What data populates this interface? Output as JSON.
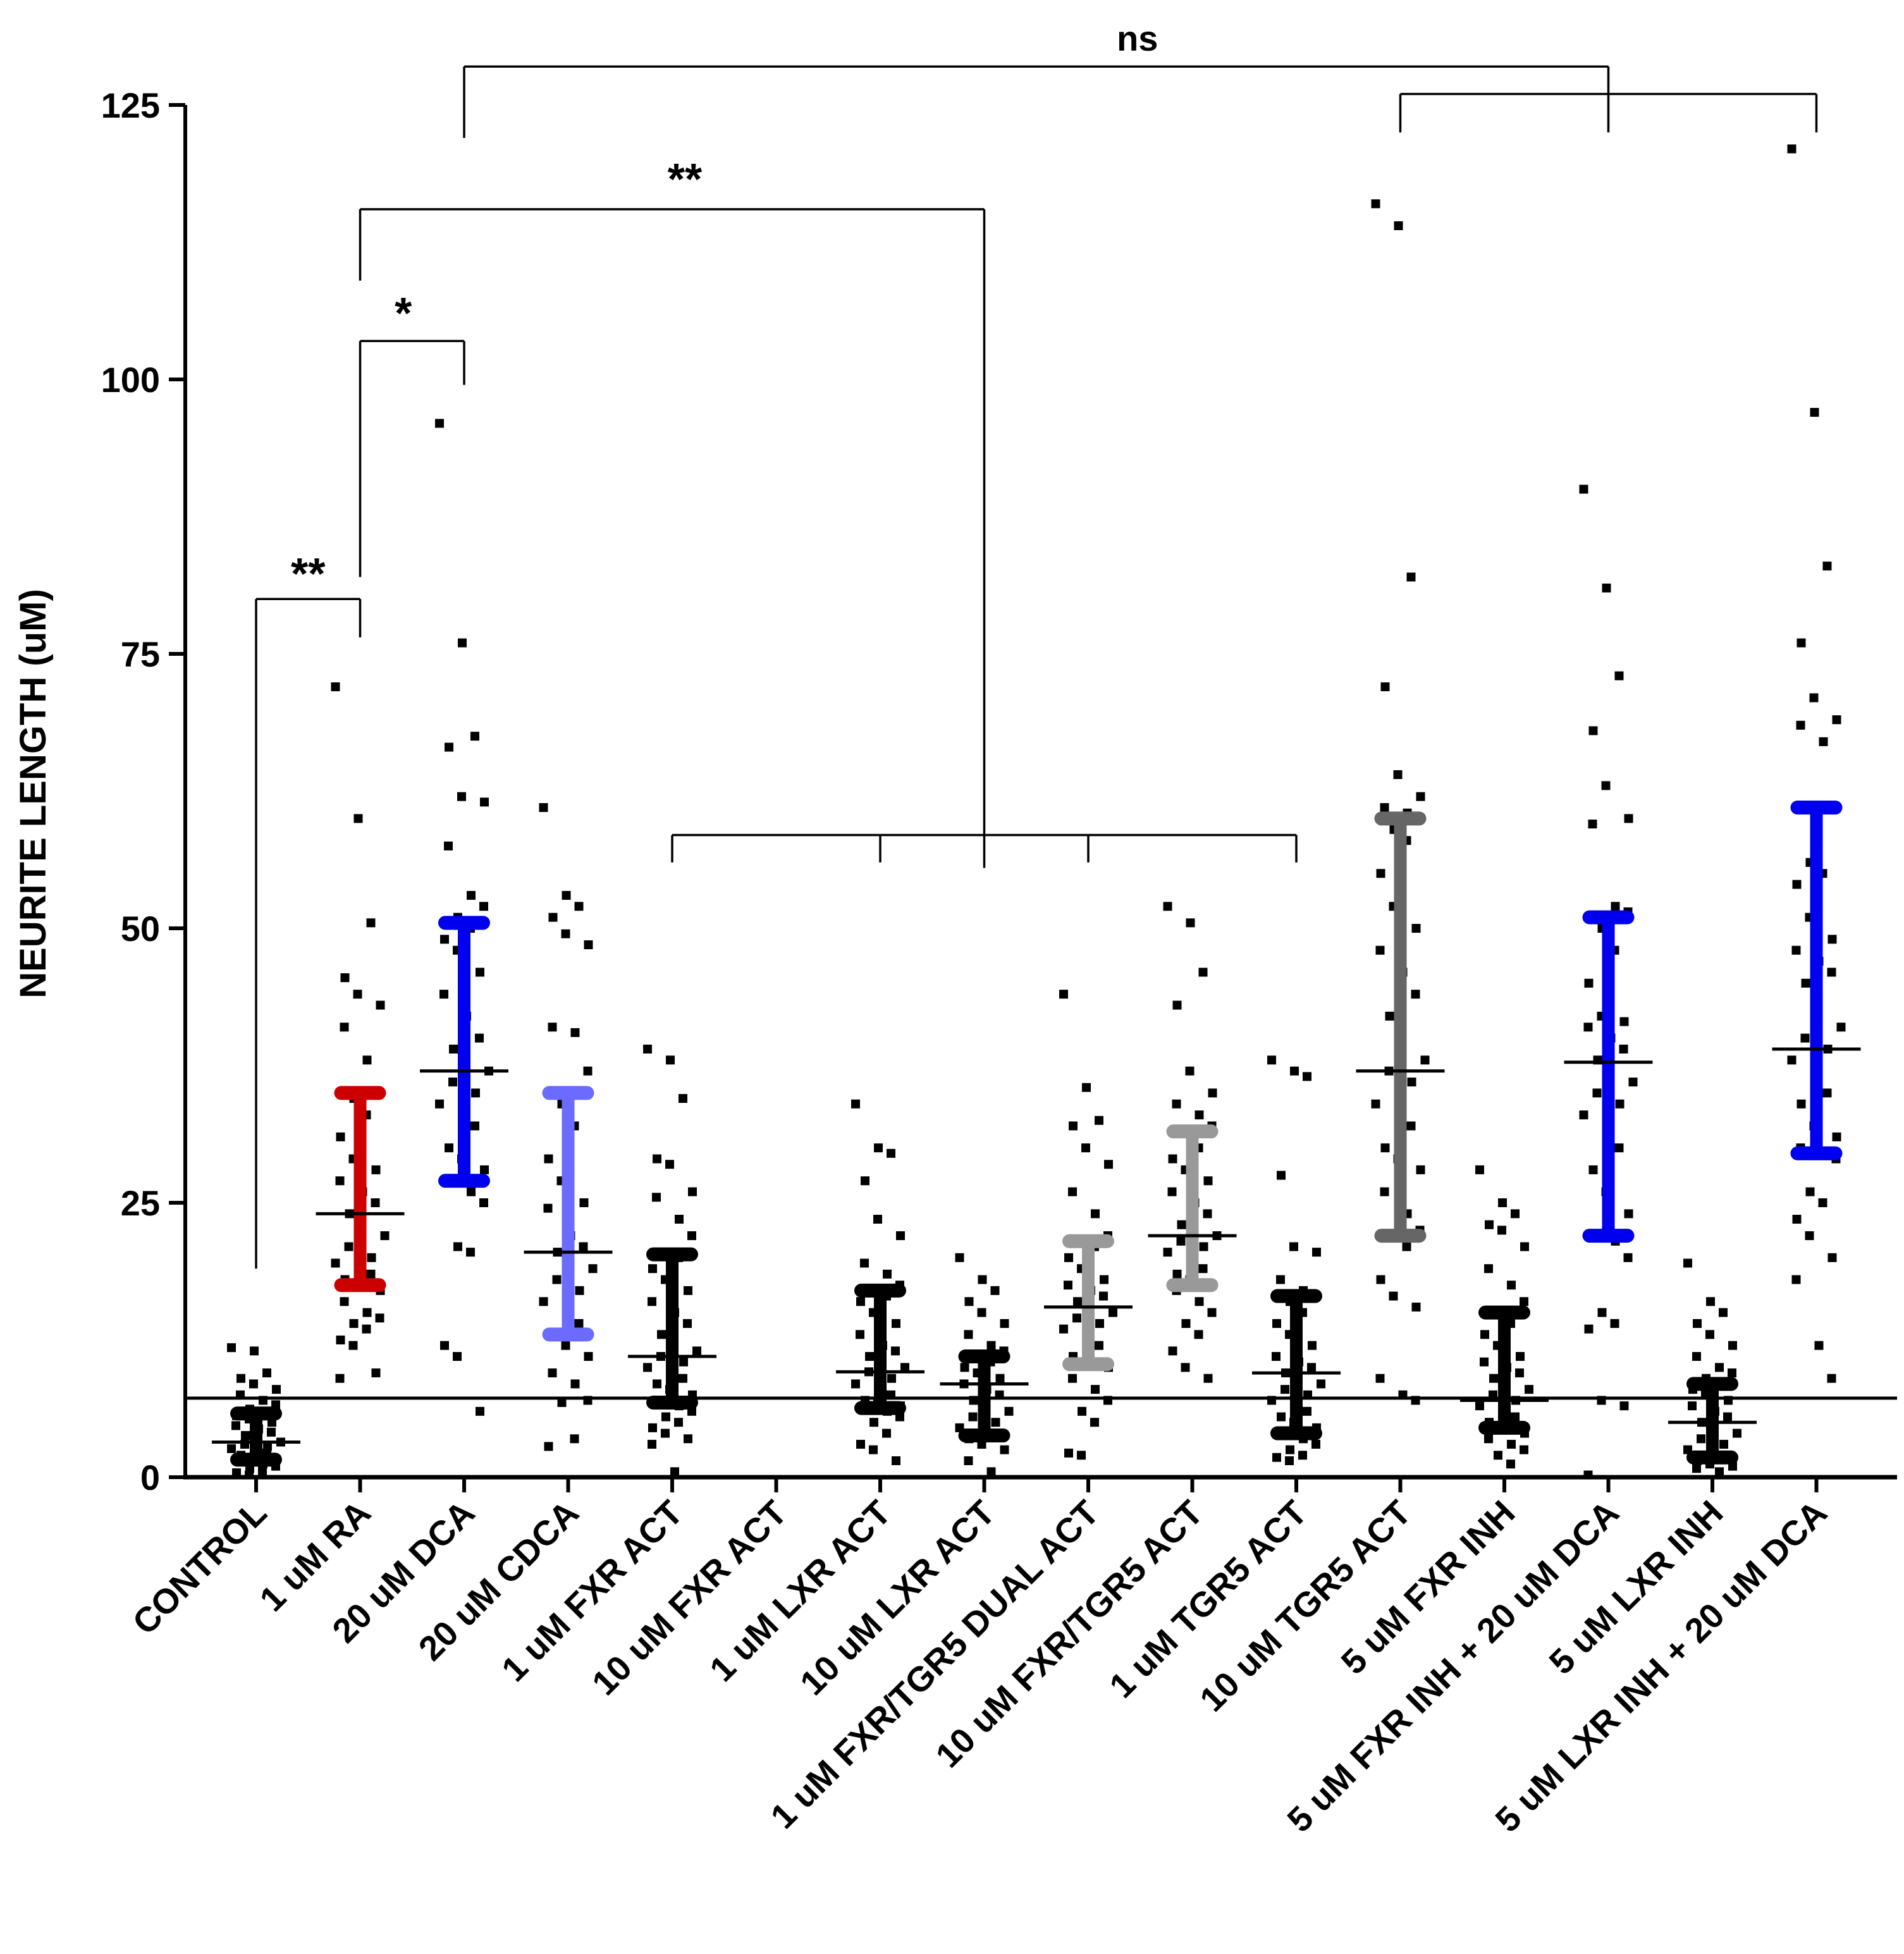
{
  "chart_data": {
    "type": "scatter",
    "subtype": "dot plot with median and interquartile range",
    "title": "",
    "xlabel": "",
    "ylabel": "NEURITE LENGTH (uM)",
    "ylim": [
      0,
      125
    ],
    "yticks": [
      0,
      25,
      50,
      75,
      100,
      125
    ],
    "reference_line": 7.2,
    "categories": [
      "CONTROL",
      "1 uM RA",
      "20 uM DCA",
      "20 uM CDCA",
      "1 uM FXR ACT",
      "10 uM FXR ACT",
      "1 uM LXR ACT",
      "10 uM LXR ACT",
      "1 uM FXR/TGR5 DUAL ACT",
      "10 uM FXR/TGR5 ACT",
      "1 uM TGR5 ACT",
      "10 uM TGR5 ACT",
      "5 uM FXR INH",
      "5 uM FXR INH + 20 uM DCA",
      "5 uM LXR INH",
      "5 uM LXR INH + 20 uM DCA"
    ],
    "series": [
      {
        "name": "CONTROL",
        "color": "#000000",
        "median": 3.2,
        "q1": 1.6,
        "q3": 5.8,
        "points": [
          11.8,
          11.5,
          9.5,
          9.0,
          8.5,
          8.0,
          7.5,
          7.0,
          6.6,
          6.2,
          5.9,
          5.6,
          5.3,
          5.0,
          4.7,
          4.4,
          4.1,
          3.8,
          3.5,
          3.2,
          3.0,
          2.8,
          2.6,
          2.4,
          2.2,
          2.0,
          1.8,
          1.6,
          1.4,
          1.2,
          1.0,
          0.8,
          0.6,
          0.4,
          0.2
        ]
      },
      {
        "name": "1 uM RA",
        "color": "#cc0000",
        "median": 24,
        "q1": 17.5,
        "q3": 35,
        "points": [
          72,
          60,
          50.5,
          45.5,
          44,
          43,
          41,
          38,
          35,
          34.5,
          33,
          31,
          29,
          28,
          27,
          26,
          25,
          24,
          23,
          22,
          21,
          20,
          19.5,
          19,
          18.5,
          18,
          17.5,
          17,
          16,
          15,
          14.5,
          14,
          13.5,
          12.5,
          12,
          9.5,
          9
        ]
      },
      {
        "name": "20 uM DCA",
        "color": "#0000ee",
        "median": 37,
        "q1": 27,
        "q3": 50.5,
        "points": [
          96,
          76,
          67.5,
          66.5,
          62,
          61.5,
          57.5,
          53,
          52,
          51,
          50,
          49,
          48,
          46,
          44,
          42,
          40,
          39,
          38,
          37,
          36,
          35,
          34,
          33,
          32,
          30,
          29,
          28,
          27,
          26,
          25,
          21,
          20.5,
          12,
          11,
          6
        ]
      },
      {
        "name": "20 uM CDCA",
        "color": "#6b6bff",
        "median": 20.5,
        "q1": 13,
        "q3": 35,
        "points": [
          61,
          53,
          52,
          51,
          49.5,
          48.5,
          41,
          40.5,
          37,
          34,
          32,
          29,
          27,
          25,
          24.5,
          22,
          21,
          20.5,
          20,
          19,
          18,
          17,
          16,
          15,
          14,
          13,
          12,
          11,
          9.5,
          8.5,
          7,
          6.8,
          3.5,
          2.8
        ]
      },
      {
        "name": "1 uM FXR ACT",
        "color": "#000000",
        "median": 11,
        "q1": 6.8,
        "q3": 20.3,
        "points": [
          39,
          38,
          34.5,
          29,
          28.5,
          26,
          25.5,
          23.5,
          22,
          20.5,
          20,
          19,
          18,
          17,
          16,
          15,
          14,
          13,
          12,
          11.5,
          11,
          10.5,
          10,
          9.5,
          9,
          8.5,
          8,
          7.5,
          7,
          6.5,
          6,
          5.5,
          5,
          4.5,
          4,
          3.5,
          3,
          0.5
        ]
      },
      {
        "name": "10 uM FXR ACT",
        "color": "#000000",
        "median": null,
        "q1": null,
        "q3": null,
        "points": []
      },
      {
        "name": "1 uM LXR ACT",
        "color": "#000000",
        "median": 9.6,
        "q1": 6.3,
        "q3": 17,
        "points": [
          34,
          30,
          29.5,
          27,
          23.5,
          22,
          19.5,
          18.5,
          17.5,
          17,
          16.5,
          16,
          15,
          14,
          13,
          12,
          11.5,
          11,
          10.5,
          10,
          9.6,
          9,
          8.5,
          8,
          7.5,
          7,
          6.8,
          6.5,
          6.3,
          6,
          5.5,
          5,
          4,
          3,
          2.5,
          1.5
        ]
      },
      {
        "name": "10 uM LXR ACT",
        "color": "#000000",
        "median": 8.5,
        "q1": 3.8,
        "q3": 11,
        "points": [
          20,
          18,
          17,
          16,
          15,
          14,
          13,
          12,
          11.5,
          11,
          10.5,
          10,
          9.5,
          9,
          8.5,
          8,
          7.5,
          7,
          6.5,
          6,
          5.5,
          5,
          4.5,
          4,
          3.8,
          3.5,
          3,
          2.5,
          1.5,
          0.5
        ]
      },
      {
        "name": "1 uM FXR/TGR5 DUAL ACT",
        "color": "#999999",
        "median": 15.5,
        "q1": 10.3,
        "q3": 21.5,
        "points": [
          44,
          35.5,
          32.5,
          32,
          30,
          28.5,
          26,
          24,
          22,
          21.5,
          21,
          20,
          19,
          18,
          17.5,
          17,
          16.5,
          16,
          15.5,
          15,
          14.5,
          14,
          13.5,
          13,
          12,
          11,
          10.5,
          10,
          9,
          8,
          7,
          6,
          5,
          2.2,
          2
        ]
      },
      {
        "name": "10 uM FXR/TGR5 ACT",
        "color": "#999999",
        "median": 22,
        "q1": 17.5,
        "q3": 31.5,
        "points": [
          52,
          50.5,
          46,
          43,
          37,
          35,
          34,
          33,
          32,
          31.5,
          30,
          29,
          28,
          27,
          26,
          25,
          24,
          23,
          22.5,
          22,
          21.5,
          21,
          20.5,
          20,
          19,
          18.5,
          18,
          17.5,
          17,
          16,
          15,
          14,
          13,
          11.5,
          10,
          9
        ]
      },
      {
        "name": "1 uM TGR5 ACT",
        "color": "#000000",
        "median": 9.5,
        "q1": 4,
        "q3": 16.5,
        "points": [
          38,
          37,
          36.5,
          27.5,
          21,
          20.5,
          18,
          17,
          16.5,
          16,
          15,
          14,
          13,
          12,
          11,
          10.5,
          10,
          9.5,
          9,
          8.5,
          8,
          7.5,
          7,
          6.5,
          6,
          5.5,
          5,
          4.5,
          4,
          3.5,
          3,
          2.5,
          2,
          1.8,
          1.5
        ]
      },
      {
        "name": "10 uM TGR5 ACT",
        "color": "#666666",
        "median": 37,
        "q1": 22,
        "q3": 60,
        "points": [
          116,
          114,
          82,
          72,
          64,
          62,
          61,
          60.5,
          60,
          59,
          58,
          55,
          52,
          50,
          48,
          46,
          44,
          42,
          40,
          38,
          37,
          36,
          34,
          33,
          32,
          30,
          29,
          28,
          26,
          24,
          22.5,
          22,
          21,
          18,
          16.5,
          15.5,
          9,
          7.5,
          7
        ]
      },
      {
        "name": "5 uM FXR INH",
        "color": "#000000",
        "median": 7,
        "q1": 4.5,
        "q3": 15,
        "points": [
          28,
          25,
          24,
          23,
          22.5,
          21,
          19,
          17.5,
          16,
          15,
          14,
          13,
          12,
          11,
          10.5,
          10,
          9.5,
          9,
          8.5,
          8,
          7.5,
          7,
          6.5,
          6,
          5.5,
          5,
          4.5,
          4,
          3.5,
          3,
          2.5,
          2,
          1.2
        ]
      },
      {
        "name": "5 uM FXR INH + 20 uM DCA",
        "color": "#0000ee",
        "median": 37.8,
        "q1": 22,
        "q3": 51,
        "points": [
          90,
          81,
          73,
          68,
          63,
          60,
          59.5,
          52,
          51.5,
          50,
          48,
          45,
          42,
          41.5,
          41,
          40,
          39,
          38,
          37.8,
          36,
          35,
          34,
          33,
          31,
          30,
          28,
          26,
          24,
          22,
          21.5,
          20,
          15,
          14,
          13.5,
          7,
          6.5,
          0.2
        ]
      },
      {
        "name": "5 uM LXR INH",
        "color": "#000000",
        "median": 5,
        "q1": 1.8,
        "q3": 8.5,
        "points": [
          19.5,
          16,
          15,
          14,
          13,
          12,
          11,
          10,
          9.5,
          9,
          8.5,
          8,
          7.5,
          7,
          6.5,
          6,
          5.5,
          5,
          4.5,
          4,
          3.5,
          3,
          2.5,
          2,
          1.8,
          1.5,
          1.2,
          1,
          0.8,
          0.5
        ]
      },
      {
        "name": "5 uM LXR INH + 20 uM DCA",
        "color": "#0000ee",
        "median": 39,
        "q1": 29.5,
        "q3": 61,
        "points": [
          121,
          97,
          83,
          76,
          71,
          69,
          68.5,
          67,
          61,
          56,
          55,
          54,
          51,
          49,
          48,
          47,
          46,
          45,
          43,
          41,
          40,
          39,
          38,
          37,
          35,
          34,
          32,
          31,
          30,
          29.5,
          29,
          26,
          25,
          23.5,
          22,
          20,
          18,
          12,
          9
        ]
      }
    ],
    "annotations": [
      {
        "label": "**",
        "groups": [
          "CONTROL",
          "1 uM RA"
        ]
      },
      {
        "label": "*",
        "groups": [
          "1 uM RA",
          "20 uM DCA"
        ]
      },
      {
        "label": "**",
        "groups": [
          "1 uM RA",
          "1 uM FXR ACT / 1 uM LXR ACT / 10 uM LXR ACT / 1 uM FXR/TGR5 DUAL ACT / 1 uM TGR5 ACT"
        ]
      },
      {
        "label": "ns",
        "groups": [
          "20 uM DCA",
          "10 uM TGR5 ACT / 5 uM FXR INH + 20 uM DCA / 5 uM LXR INH + 20 uM DCA"
        ]
      }
    ]
  }
}
